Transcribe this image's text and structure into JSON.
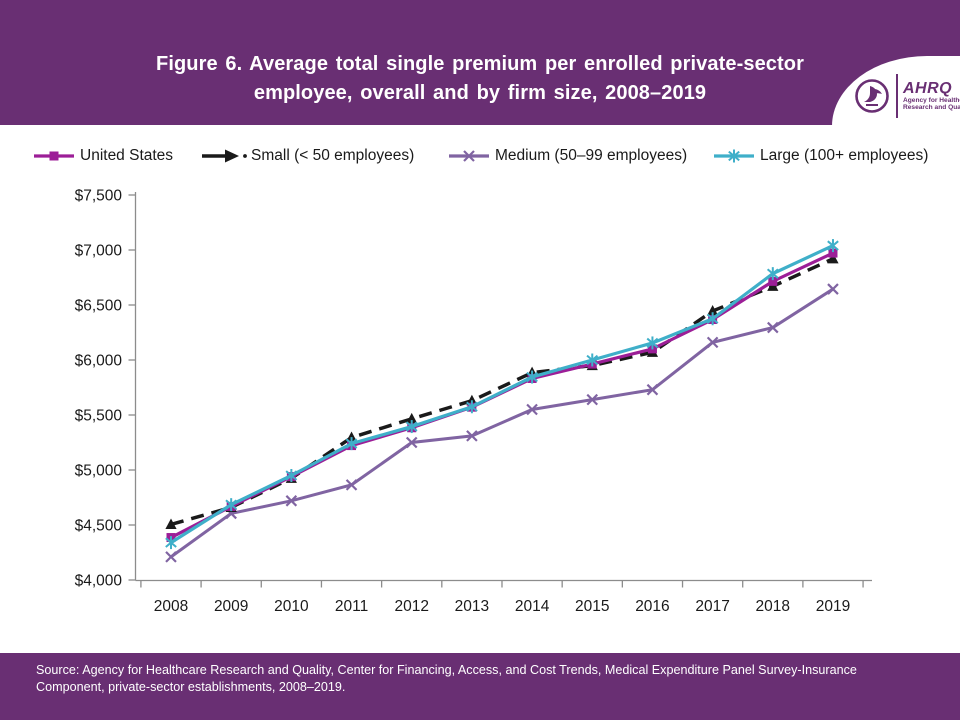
{
  "header": {
    "title_line1": "Figure 6. Average total single premium per enrolled private-sector",
    "title_line2": "employee, overall and by firm size, 2008–2019",
    "logo": {
      "hhs_icon": "hhs-eagle-icon",
      "org_acronym": "AHRQ",
      "org_name_line1": "Agency for Healthcare",
      "org_name_line2": "Research and Quality"
    }
  },
  "colors": {
    "banner_purple": "#692F73",
    "us_line": "#9C1E97",
    "small_line": "#1A1A1A",
    "medium_line": "#8064A2",
    "large_line": "#3FAFC9",
    "axis_gray": "#8C8C8C",
    "tick_label": "#1A1A1A"
  },
  "chart_data": {
    "type": "line",
    "title": "Average total single premium per enrolled private-sector employee, overall and by firm size, 2008–2019",
    "xlabel": "",
    "ylabel": "",
    "x": [
      2008,
      2009,
      2010,
      2011,
      2012,
      2013,
      2014,
      2015,
      2016,
      2017,
      2018,
      2019
    ],
    "series": [
      {
        "name": "United States",
        "marker": "square",
        "line_style": "solid",
        "width": 3.2,
        "color_key": "us_line",
        "values": [
          4386,
          4669,
          4940,
          5222,
          5384,
          5571,
          5832,
          5963,
          6101,
          6368,
          6715,
          6972
        ]
      },
      {
        "name": "Small (< 50 employees)",
        "marker": "triangle",
        "line_style": "dashed",
        "width": 3.5,
        "color_key": "small_line",
        "legend_glyph": "arrow-dot",
        "values": [
          4505,
          4660,
          4925,
          5295,
          5465,
          5630,
          5885,
          5950,
          6070,
          6445,
          6670,
          6920
        ]
      },
      {
        "name": "Medium (50–99 employees)",
        "marker": "x",
        "line_style": "solid",
        "width": 3,
        "color_key": "medium_line",
        "values": [
          4210,
          4605,
          4720,
          4865,
          5250,
          5310,
          5550,
          5640,
          5730,
          6160,
          6295,
          6645
        ]
      },
      {
        "name": "Large (100+ employees)",
        "marker": "asterisk",
        "line_style": "solid",
        "width": 3.2,
        "color_key": "large_line",
        "values": [
          4340,
          4685,
          4950,
          5240,
          5395,
          5575,
          5845,
          6000,
          6155,
          6375,
          6785,
          7040
        ]
      }
    ],
    "ylim": [
      4000,
      7500
    ],
    "ytick_step": 500,
    "ytick_labels": [
      "$4,000",
      "$4,500",
      "$5,000",
      "$5,500",
      "$6,000",
      "$6,500",
      "$7,000",
      "$7,500"
    ],
    "grid": false,
    "legend_position": "top"
  },
  "footer": {
    "source_line1": "Source: Agency for Healthcare Research and Quality, Center for Financing, Access, and Cost Trends, Medical Expenditure Panel Survey-Insurance",
    "source_line2": "Component, private-sector establishments, 2008–2019."
  }
}
